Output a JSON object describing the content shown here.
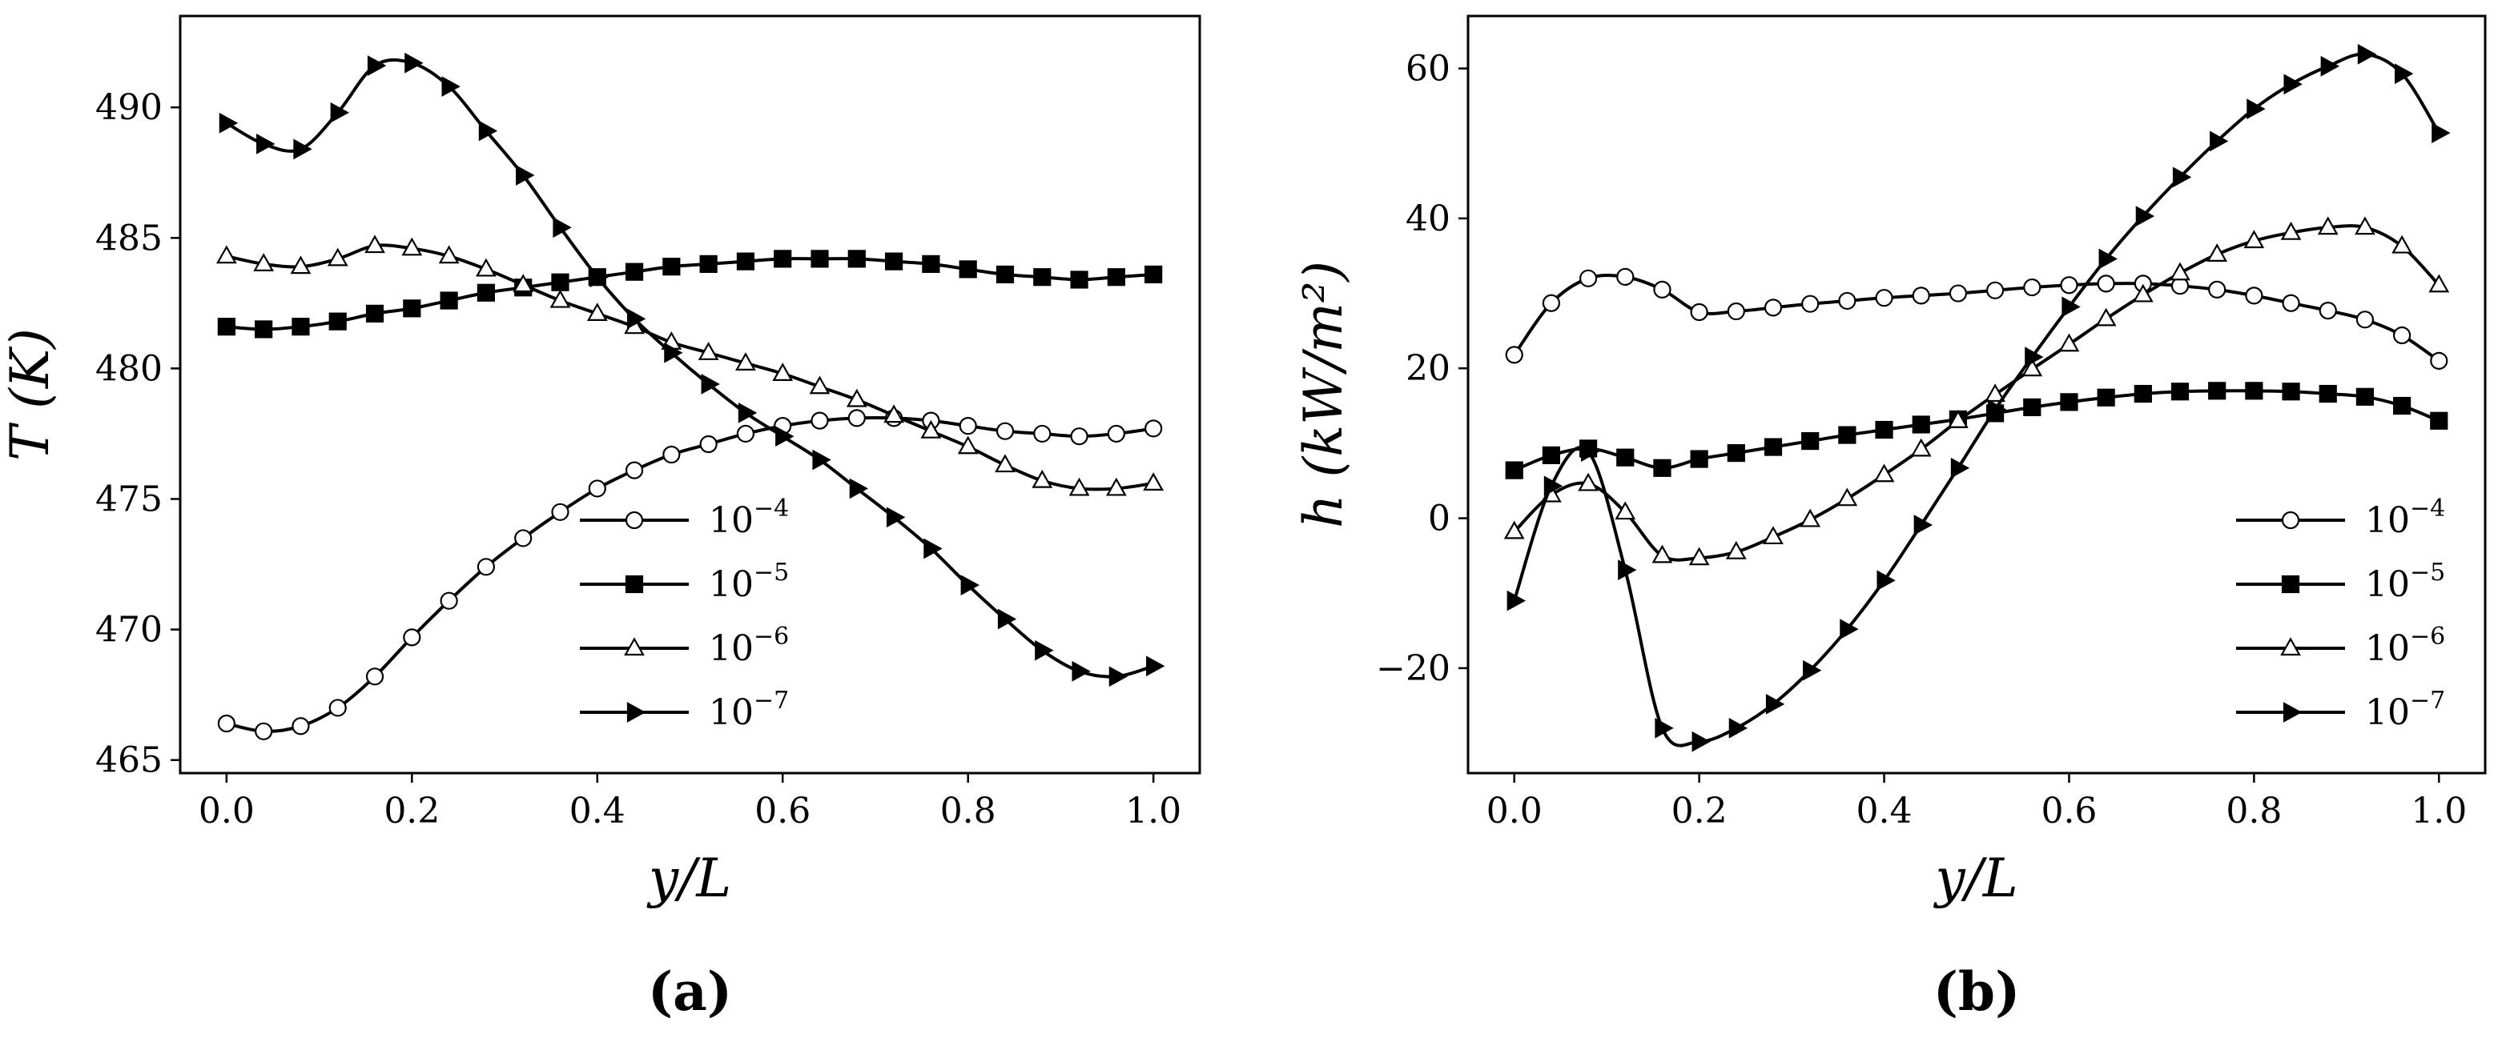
{
  "chart_data": [
    {
      "type": "line",
      "panel_label": "(a)",
      "xlabel": "y/L",
      "ylabel": "T (K)",
      "xlim": [
        -0.05,
        1.05
      ],
      "ylim": [
        464.5,
        493.5
      ],
      "xticks": [
        0.0,
        0.2,
        0.4,
        0.6,
        0.8,
        1.0
      ],
      "xtick_labels": [
        "0.0",
        "0.2",
        "0.4",
        "0.6",
        "0.8",
        "1.0"
      ],
      "yticks": [
        465,
        470,
        475,
        480,
        485,
        490
      ],
      "ytick_labels": [
        "465",
        "470",
        "475",
        "480",
        "485",
        "490"
      ],
      "legend_position": "lower-right",
      "grid": false,
      "x": [
        0.0,
        0.04,
        0.08,
        0.12,
        0.16,
        0.2,
        0.24,
        0.28,
        0.32,
        0.36,
        0.4,
        0.44,
        0.48,
        0.52,
        0.56,
        0.6,
        0.64,
        0.68,
        0.72,
        0.76,
        0.8,
        0.84,
        0.88,
        0.92,
        0.96,
        1.0
      ],
      "series": [
        {
          "name": "10^-4",
          "base": "10",
          "exponent": "−4",
          "marker": "circle-open",
          "values": [
            466.4,
            466.1,
            466.3,
            467.0,
            468.2,
            469.7,
            471.1,
            472.4,
            473.5,
            474.5,
            475.4,
            476.1,
            476.7,
            477.1,
            477.5,
            477.8,
            478.0,
            478.1,
            478.1,
            478.0,
            477.8,
            477.6,
            477.5,
            477.4,
            477.5,
            477.7
          ]
        },
        {
          "name": "10^-5",
          "base": "10",
          "exponent": "−5",
          "marker": "square-filled",
          "values": [
            481.6,
            481.5,
            481.6,
            481.8,
            482.1,
            482.3,
            482.6,
            482.9,
            483.1,
            483.3,
            483.5,
            483.7,
            483.9,
            484.0,
            484.1,
            484.2,
            484.2,
            484.2,
            484.1,
            484.0,
            483.8,
            483.6,
            483.5,
            483.4,
            483.5,
            483.6
          ]
        },
        {
          "name": "10^-6",
          "base": "10",
          "exponent": "−6",
          "marker": "triangle-open",
          "values": [
            484.3,
            484.0,
            483.9,
            484.2,
            484.7,
            484.6,
            484.3,
            483.8,
            483.2,
            482.6,
            482.1,
            481.6,
            481.0,
            480.6,
            480.2,
            479.8,
            479.3,
            478.8,
            478.2,
            477.6,
            477.0,
            476.3,
            475.7,
            475.4,
            475.4,
            475.6
          ]
        },
        {
          "name": "10^-7",
          "base": "10",
          "exponent": "−7",
          "marker": "triangle-right-filled",
          "values": [
            489.4,
            488.6,
            488.4,
            489.8,
            491.6,
            491.7,
            490.8,
            489.1,
            487.4,
            485.4,
            483.5,
            481.9,
            480.6,
            479.4,
            478.3,
            477.4,
            476.5,
            475.4,
            474.3,
            473.1,
            471.7,
            470.4,
            469.2,
            468.4,
            468.2,
            468.6
          ]
        }
      ]
    },
    {
      "type": "line",
      "panel_label": "(b)",
      "xlabel": "y/L",
      "ylabel": "h (kW/m²)",
      "xlim": [
        -0.05,
        1.05
      ],
      "ylim": [
        -34,
        67
      ],
      "xticks": [
        0.0,
        0.2,
        0.4,
        0.6,
        0.8,
        1.0
      ],
      "xtick_labels": [
        "0.0",
        "0.2",
        "0.4",
        "0.6",
        "0.8",
        "1.0"
      ],
      "yticks": [
        -20,
        0,
        20,
        40,
        60
      ],
      "ytick_labels": [
        "−20",
        "0",
        "20",
        "40",
        "60"
      ],
      "legend_position": "lower-right",
      "grid": false,
      "x": [
        0.0,
        0.04,
        0.08,
        0.12,
        0.16,
        0.2,
        0.24,
        0.28,
        0.32,
        0.36,
        0.4,
        0.44,
        0.48,
        0.52,
        0.56,
        0.6,
        0.64,
        0.68,
        0.72,
        0.76,
        0.8,
        0.84,
        0.88,
        0.92,
        0.96,
        1.0
      ],
      "series": [
        {
          "name": "10^-4",
          "base": "10",
          "exponent": "−4",
          "marker": "circle-open",
          "values": [
            21.8,
            28.7,
            32.0,
            32.2,
            30.5,
            27.5,
            27.6,
            28.1,
            28.6,
            29.0,
            29.4,
            29.7,
            30.0,
            30.4,
            30.8,
            31.1,
            31.3,
            31.3,
            31.0,
            30.5,
            29.7,
            28.7,
            27.7,
            26.5,
            24.4,
            21.0
          ]
        },
        {
          "name": "10^-5",
          "base": "10",
          "exponent": "−5",
          "marker": "square-filled",
          "values": [
            6.4,
            8.4,
            9.3,
            8.1,
            6.7,
            7.9,
            8.7,
            9.5,
            10.3,
            11.1,
            11.8,
            12.5,
            13.2,
            14.0,
            14.8,
            15.5,
            16.1,
            16.6,
            16.9,
            17.0,
            17.0,
            16.9,
            16.6,
            16.2,
            15.0,
            13.0
          ]
        },
        {
          "name": "10^-6",
          "base": "10",
          "exponent": "−6",
          "marker": "triangle-open",
          "values": [
            -1.8,
            3.1,
            4.6,
            0.8,
            -5.0,
            -5.3,
            -4.5,
            -2.5,
            -0.2,
            2.6,
            5.8,
            9.2,
            13.0,
            16.5,
            19.9,
            23.2,
            26.6,
            29.8,
            32.7,
            35.2,
            37.0,
            38.1,
            38.8,
            38.8,
            36.3,
            31.1
          ]
        },
        {
          "name": "10^-7",
          "base": "10",
          "exponent": "−7",
          "marker": "triangle-right-filled",
          "values": [
            -11.0,
            4.3,
            8.9,
            -6.9,
            -28.0,
            -29.8,
            -28.0,
            -24.8,
            -20.3,
            -14.8,
            -8.3,
            -0.9,
            6.7,
            14.5,
            21.5,
            28.2,
            34.6,
            40.3,
            45.5,
            50.3,
            54.6,
            57.9,
            60.3,
            61.9,
            59.3,
            51.4
          ]
        }
      ]
    }
  ]
}
